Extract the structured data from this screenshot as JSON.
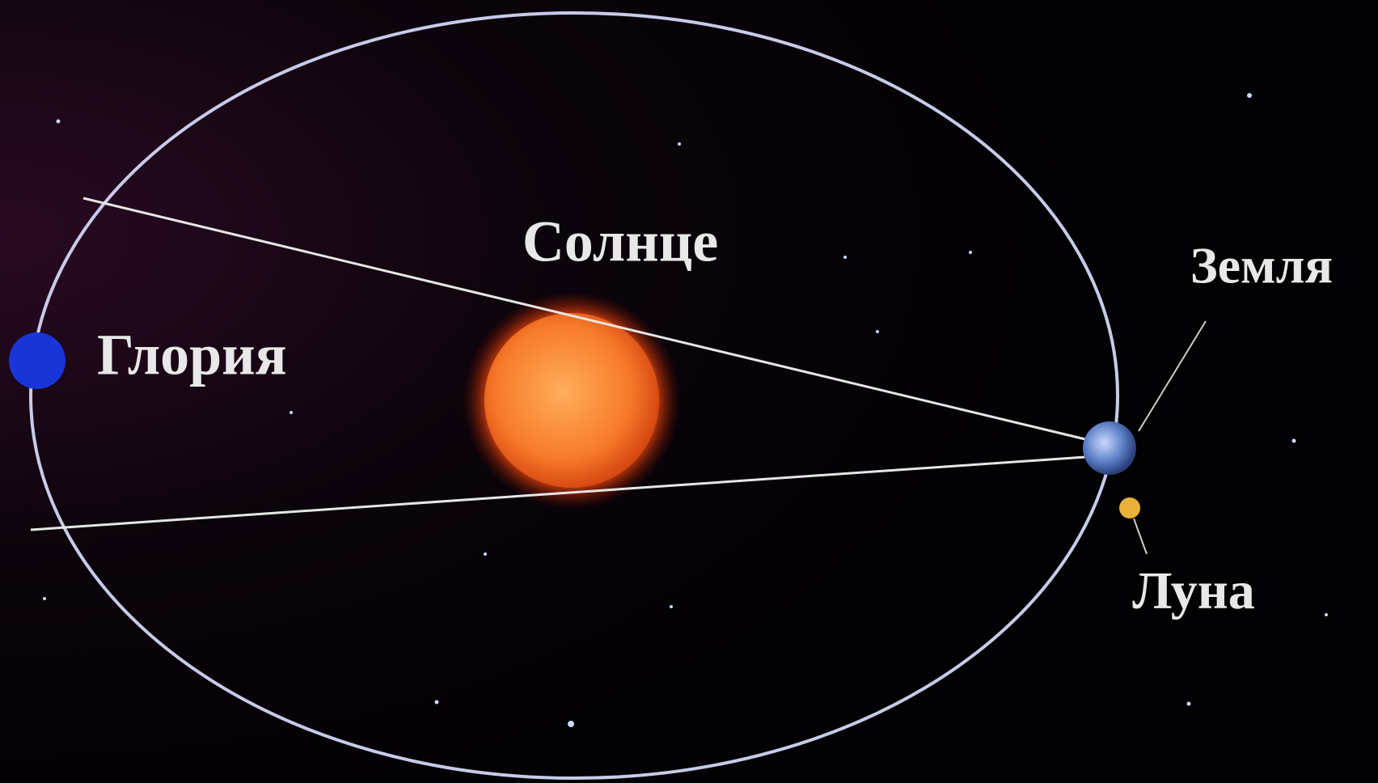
{
  "labels": {
    "sun": "Солнце",
    "earth": "Земля",
    "gloria": "Глория",
    "moon": "Луна"
  }
}
